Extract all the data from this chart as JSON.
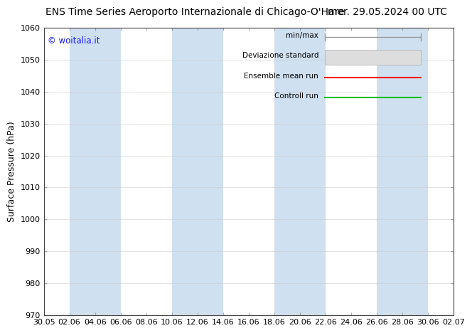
{
  "title_left": "ENS Time Series Aeroporto Internazionale di Chicago-O'Hare",
  "title_right": "mer. 29.05.2024 00 UTC",
  "ylabel": "Surface Pressure (hPa)",
  "ylim": [
    970,
    1060
  ],
  "yticks": [
    970,
    980,
    990,
    1000,
    1010,
    1020,
    1030,
    1040,
    1050,
    1060
  ],
  "xtick_labels": [
    "30.05",
    "02.06",
    "04.06",
    "06.06",
    "08.06",
    "10.06",
    "12.06",
    "14.06",
    "16.06",
    "18.06",
    "20.06",
    "22.06",
    "24.06",
    "26.06",
    "28.06",
    "30.06",
    "02.07"
  ],
  "watermark": "© woitalia.it",
  "watermark_color": "#1a1aff",
  "bg_color": "#ffffff",
  "band_color": "#cfe0f0",
  "legend_items": [
    "min/max",
    "Deviazione standard",
    "Ensemble mean run",
    "Controll run"
  ],
  "legend_line_colors": [
    "#999999",
    "#cccccc",
    "#ff0000",
    "#00bb00"
  ],
  "title_fontsize": 10,
  "axis_fontsize": 9,
  "tick_fontsize": 8
}
